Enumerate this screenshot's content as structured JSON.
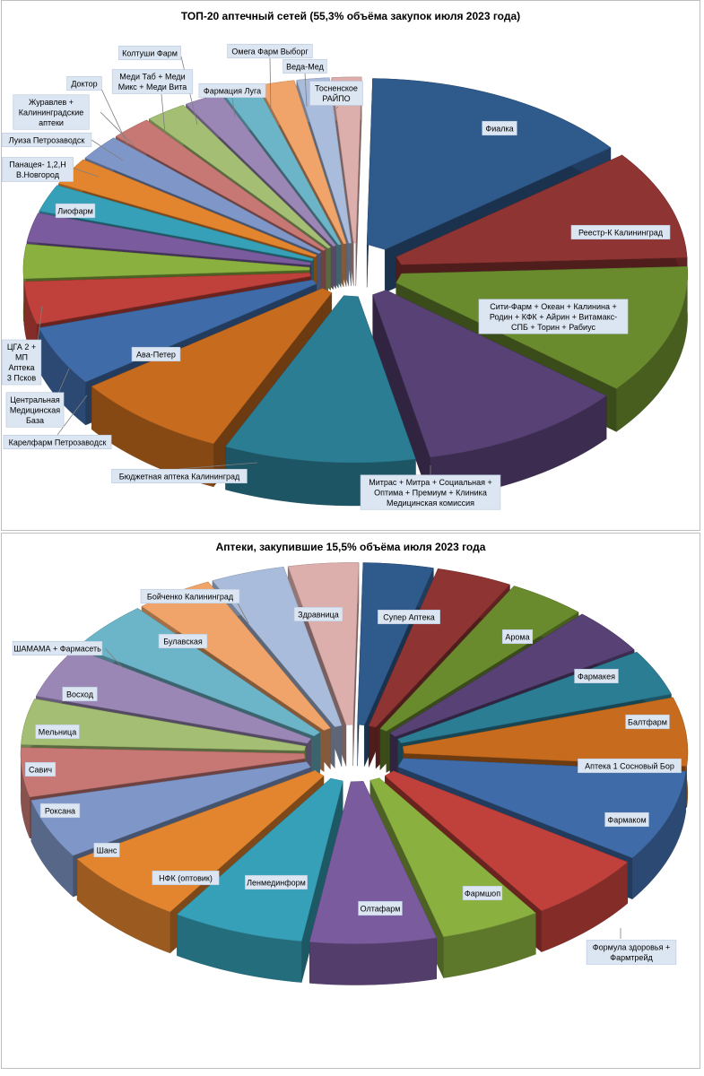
{
  "chart_data": [
    {
      "type": "pie",
      "title": "ТОП-20 аптечный сетей (55,3% объёма закупок июля 2023 года)",
      "slices": [
        {
          "label": "Фиалка",
          "value": 9.2,
          "color": "#2f5a8c"
        },
        {
          "label": "Реестр-К Калининград",
          "value": 6.4,
          "color": "#8e3432"
        },
        {
          "label": "Сити-Фарм + Океан + Калинина + Родин + КФК + Айрин + Витамакс-СПБ + Торин + Рабиус",
          "value": 7.6,
          "color": "#6a8a2e"
        },
        {
          "label": "Митрас + Митра + Социальная + Оптима + Премиум + Клиника Медицинская комиссия",
          "value": 7.0,
          "color": "#574175"
        },
        {
          "label": "Бюджетная аптека Калининград",
          "value": 6.5,
          "color": "#2b7d93"
        },
        {
          "label": "Ава-Петер",
          "value": 5.3,
          "color": "#c76b1e"
        },
        {
          "label": "Карелфарм Петрозаводск",
          "value": 3.5,
          "color": "#3f6ca8"
        },
        {
          "label": "Центральная Медицинская База",
          "value": 2.5,
          "color": "#c0413b"
        },
        {
          "label": "ЦГА 2 + МП Аптека 3 Псков",
          "value": 2.0,
          "color": "#8ab03f"
        },
        {
          "label": "Лиофарм",
          "value": 1.7,
          "color": "#7a5b9e"
        },
        {
          "label": "Панацея- 1,2,Н В.Новгород",
          "value": 1.6,
          "color": "#35a0b8"
        },
        {
          "label": "Луиза Петрозаводск",
          "value": 1.6,
          "color": "#e3852f"
        },
        {
          "label": "Журавлев + Калининградские аптеки",
          "value": 1.5,
          "color": "#7f97c8"
        },
        {
          "label": "Доктор",
          "value": 1.4,
          "color": "#c87874"
        },
        {
          "label": "Меди Таб + Меди Микс + Меди Вита",
          "value": 1.4,
          "color": "#a4bf73"
        },
        {
          "label": "Колтуши Фарм",
          "value": 1.3,
          "color": "#9b87b5"
        },
        {
          "label": "Фармация Луга",
          "value": 1.2,
          "color": "#6cb5c9"
        },
        {
          "label": "Омега Фарм Выборг",
          "value": 1.2,
          "color": "#f0a469"
        },
        {
          "label": "Веда-Мед",
          "value": 1.1,
          "color": "#a9bcdb"
        },
        {
          "label": "Тосненское РАЙПО",
          "value": 1.0,
          "color": "#dcaeac"
        }
      ]
    },
    {
      "type": "pie",
      "title": "Аптеки, закупившие 15,5% объёма июля 2023 года",
      "slices": [
        {
          "label": "Супер Аптека",
          "value": 3.5,
          "color": "#2f5a8c"
        },
        {
          "label": "Арома",
          "value": 3.8,
          "color": "#8e3432"
        },
        {
          "label": "Фармакея",
          "value": 3.9,
          "color": "#6a8a2e"
        },
        {
          "label": "Балтфарм",
          "value": 4.0,
          "color": "#574175"
        },
        {
          "label": "Аптека 1 Сосновый Бор",
          "value": 4.0,
          "color": "#2b7d93"
        },
        {
          "label": "Фармаком",
          "value": 6.0,
          "color": "#c76b1e"
        },
        {
          "label": "Формула здоровья + Фармтрейд",
          "value": 8.0,
          "color": "#3f6ca8"
        },
        {
          "label": "Фармшоп",
          "value": 6.0,
          "color": "#c0413b"
        },
        {
          "label": "Олтафарм",
          "value": 5.0,
          "color": "#8ab03f"
        },
        {
          "label": "Ленмединформ",
          "value": 6.3,
          "color": "#7a5b9e"
        },
        {
          "label": "НФК (оптовик)",
          "value": 6.6,
          "color": "#35a0b8"
        },
        {
          "label": "Шанс",
          "value": 6.5,
          "color": "#e3852f"
        },
        {
          "label": "Роксана",
          "value": 5.2,
          "color": "#7f97c8"
        },
        {
          "label": "Савич",
          "value": 4.3,
          "color": "#c87874"
        },
        {
          "label": "Мельница",
          "value": 4.0,
          "color": "#a4bf73"
        },
        {
          "label": "Восход",
          "value": 4.5,
          "color": "#9b87b5"
        },
        {
          "label": "ШАМАМА + Фармасеть",
          "value": 4.4,
          "color": "#6cb5c9"
        },
        {
          "label": "Булавская",
          "value": 3.9,
          "color": "#f0a469"
        },
        {
          "label": "Бойченко Калининград",
          "value": 3.7,
          "color": "#a9bcdb"
        },
        {
          "label": "Здравница",
          "value": 3.5,
          "color": "#dcaeac"
        }
      ]
    }
  ]
}
